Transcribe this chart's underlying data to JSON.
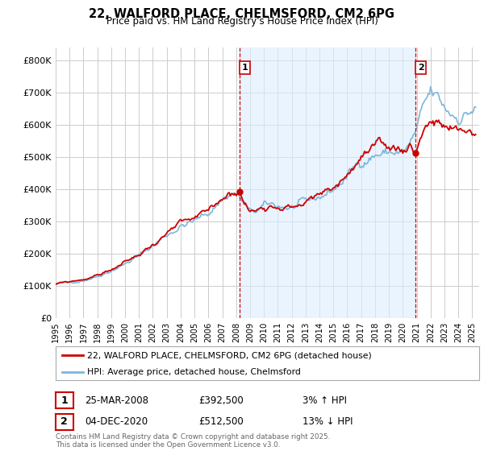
{
  "title": "22, WALFORD PLACE, CHELMSFORD, CM2 6PG",
  "subtitle": "Price paid vs. HM Land Registry's House Price Index (HPI)",
  "legend_label_red": "22, WALFORD PLACE, CHELMSFORD, CM2 6PG (detached house)",
  "legend_label_blue": "HPI: Average price, detached house, Chelmsford",
  "annotation1_date": "25-MAR-2008",
  "annotation1_price": "£392,500",
  "annotation1_hpi": "3% ↑ HPI",
  "annotation2_date": "04-DEC-2020",
  "annotation2_price": "£512,500",
  "annotation2_hpi": "13% ↓ HPI",
  "footer": "Contains HM Land Registry data © Crown copyright and database right 2025.\nThis data is licensed under the Open Government Licence v3.0.",
  "ylim": [
    0,
    840000
  ],
  "yticks": [
    0,
    100000,
    200000,
    300000,
    400000,
    500000,
    600000,
    700000,
    800000
  ],
  "ytick_labels": [
    "£0",
    "£100K",
    "£200K",
    "£300K",
    "£400K",
    "£500K",
    "£600K",
    "£700K",
    "£800K"
  ],
  "line_color_red": "#cc0000",
  "line_color_blue": "#7eb6d9",
  "vline_color": "#cc0000",
  "fill_color": "#ddeeff",
  "grid_color": "#cccccc",
  "background_color": "#ffffff",
  "marker1_x": 2008.23,
  "marker1_y": 392500,
  "marker2_x": 2020.92,
  "marker2_y": 512500,
  "xlim_left": 1995.0,
  "xlim_right": 2025.5
}
